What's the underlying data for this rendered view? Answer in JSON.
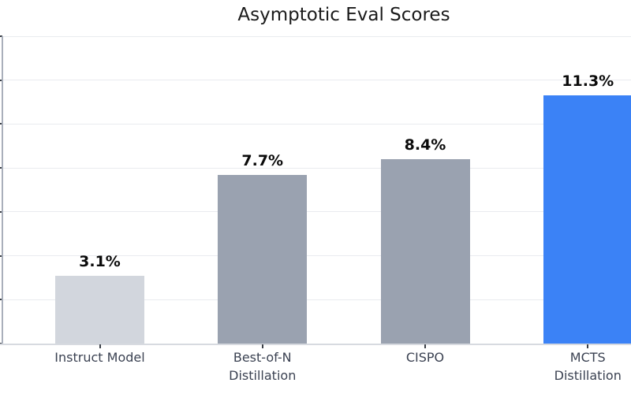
{
  "chart_data": {
    "type": "bar",
    "title": "Asymptotic Eval Scores",
    "categories": [
      "Instruct Model",
      "Best-of-N\nDistillation",
      "CISPO",
      "MCTS\nDistillation"
    ],
    "values": [
      3.1,
      7.7,
      8.4,
      11.3
    ],
    "value_labels": [
      "3.1%",
      "7.7%",
      "8.4%",
      "11.3%"
    ],
    "bar_colors": [
      "#d2d6dd",
      "#9aa2b0",
      "#9aa2b0",
      "#3b82f6"
    ],
    "xlabel": "",
    "ylabel": "",
    "ylim": [
      0,
      14
    ],
    "grid_step": 2,
    "grid": true,
    "legend": "none",
    "ytick_labels": [],
    "highlight_color": "#3b82f6"
  }
}
